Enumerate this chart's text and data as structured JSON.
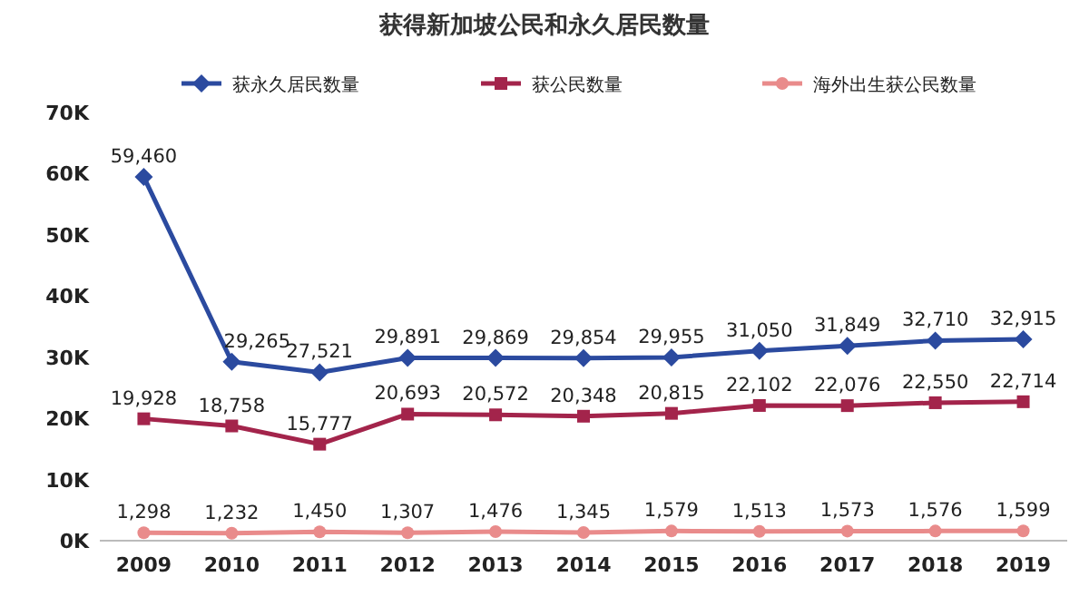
{
  "chart_data": {
    "type": "line",
    "title": "获得新加坡公民和永久居民数量",
    "categories": [
      "2009",
      "2010",
      "2011",
      "2012",
      "2013",
      "2014",
      "2015",
      "2016",
      "2017",
      "2018",
      "2019"
    ],
    "series": [
      {
        "name": "获永久居民数量",
        "color": "#2b4a9f",
        "marker": "diamond",
        "values": [
          59460,
          29265,
          27521,
          29891,
          29869,
          29854,
          29955,
          31050,
          31849,
          32710,
          32915
        ],
        "value_labels": [
          "59,460",
          "29,265",
          "27,521",
          "29,891",
          "29,869",
          "29,854",
          "29,955",
          "31,050",
          "31,849",
          "32,710",
          "32,915"
        ]
      },
      {
        "name": "获公民数量",
        "color": "#a3244b",
        "marker": "square",
        "values": [
          19928,
          18758,
          15777,
          20693,
          20572,
          20348,
          20815,
          22102,
          22076,
          22550,
          22714
        ],
        "value_labels": [
          "19,928",
          "18,758",
          "15,777",
          "20,693",
          "20,572",
          "20,348",
          "20,815",
          "22,102",
          "22,076",
          "22,550",
          "22,714"
        ]
      },
      {
        "name": "海外出生获公民数量",
        "color": "#e98b8b",
        "marker": "circle",
        "values": [
          1298,
          1232,
          1450,
          1307,
          1476,
          1345,
          1579,
          1513,
          1573,
          1576,
          1599
        ],
        "value_labels": [
          "1,298",
          "1,232",
          "1,450",
          "1,307",
          "1,476",
          "1,345",
          "1,579",
          "1,513",
          "1,573",
          "1,576",
          "1,599"
        ]
      }
    ],
    "ylim": [
      0,
      70000
    ],
    "yticks": [
      {
        "value": 0,
        "label": "0K"
      },
      {
        "value": 10000,
        "label": "10K"
      },
      {
        "value": 20000,
        "label": "20K"
      },
      {
        "value": 30000,
        "label": "30K"
      },
      {
        "value": 40000,
        "label": "40K"
      },
      {
        "value": 50000,
        "label": "50K"
      },
      {
        "value": 60000,
        "label": "60K"
      },
      {
        "value": 70000,
        "label": "70K"
      }
    ],
    "legend": "top",
    "grid": false,
    "line_style": "solid"
  }
}
